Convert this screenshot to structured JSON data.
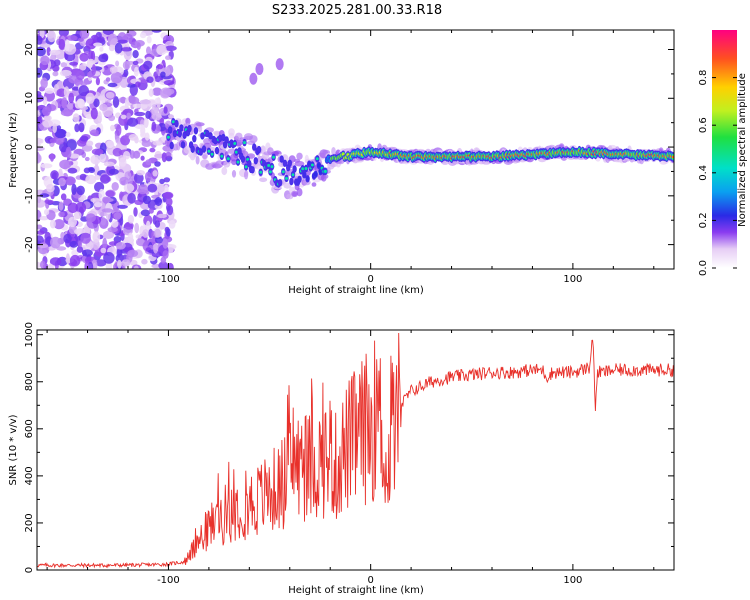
{
  "title": "S233.2025.281.00.33.R18",
  "colors": {
    "snr_line": "#e8302a",
    "axis": "#000000",
    "background": "#ffffff"
  },
  "chart_data": [
    {
      "type": "heatmap",
      "name": "spectrogram",
      "xlabel": "Height of straight line (km)",
      "ylabel": "Frequency (Hz)",
      "xlim": [
        -165,
        150
      ],
      "ylim": [
        -25,
        24
      ],
      "xticks": [
        -100,
        0,
        100
      ],
      "yticks": [
        -20,
        -10,
        0,
        10,
        20
      ],
      "colorbar": {
        "label": "Normalized spectral amplitude",
        "range": [
          0,
          1
        ],
        "ticks": [
          "0.0",
          "0.2",
          "0.4",
          "0.6",
          "0.8"
        ]
      },
      "description_points": [
        {
          "x": -165,
          "y_center": 0,
          "spread": 24,
          "amp": 0.25
        },
        {
          "x": -95,
          "y_center": 3,
          "spread": 3,
          "amp": 0.35
        },
        {
          "x": -80,
          "y_center": 0,
          "spread": 4,
          "amp": 0.35
        },
        {
          "x": -60,
          "y_center": -2,
          "spread": 4,
          "amp": 0.35
        },
        {
          "x": -40,
          "y_center": -6,
          "spread": 4,
          "amp": 0.35
        },
        {
          "x": -25,
          "y_center": -4,
          "spread": 3,
          "amp": 0.4
        },
        {
          "x": -15,
          "y_center": -2,
          "spread": 1,
          "amp": 0.7
        },
        {
          "x": 0,
          "y_center": -1,
          "spread": 1,
          "amp": 0.8
        },
        {
          "x": 20,
          "y_center": -2,
          "spread": 1,
          "amp": 0.95
        },
        {
          "x": 60,
          "y_center": -2,
          "spread": 1,
          "amp": 0.95
        },
        {
          "x": 100,
          "y_center": -1,
          "spread": 1,
          "amp": 0.95
        },
        {
          "x": 150,
          "y_center": -2,
          "spread": 1,
          "amp": 0.95
        }
      ]
    },
    {
      "type": "line",
      "name": "snr",
      "xlabel": "Height of straight line (km)",
      "ylabel": "SNR (10 * v/v)",
      "xlim": [
        -165,
        150
      ],
      "ylim": [
        0,
        1020
      ],
      "xticks": [
        -100,
        0,
        100
      ],
      "yticks": [
        0,
        200,
        400,
        600,
        800,
        1000
      ],
      "series": [
        {
          "name": "SNR",
          "x": [
            -165,
            -150,
            -130,
            -110,
            -100,
            -92,
            -88,
            -85,
            -80,
            -75,
            -70,
            -65,
            -60,
            -55,
            -50,
            -45,
            -40,
            -38,
            -35,
            -30,
            -25,
            -20,
            -17,
            -15,
            -10,
            -5,
            0,
            3,
            5,
            7,
            8,
            10,
            15,
            20,
            30,
            40,
            50,
            60,
            70,
            80,
            85,
            87,
            90,
            100,
            108,
            110,
            111,
            112,
            115,
            120,
            130,
            140,
            150
          ],
          "y": [
            20,
            20,
            20,
            22,
            25,
            35,
            80,
            120,
            180,
            220,
            250,
            280,
            280,
            300,
            330,
            350,
            420,
            500,
            420,
            440,
            460,
            500,
            430,
            480,
            540,
            580,
            620,
            650,
            620,
            560,
            300,
            600,
            700,
            760,
            800,
            820,
            830,
            840,
            840,
            850,
            850,
            820,
            840,
            840,
            860,
            1000,
            660,
            840,
            840,
            850,
            850,
            850,
            850
          ]
        }
      ]
    }
  ]
}
